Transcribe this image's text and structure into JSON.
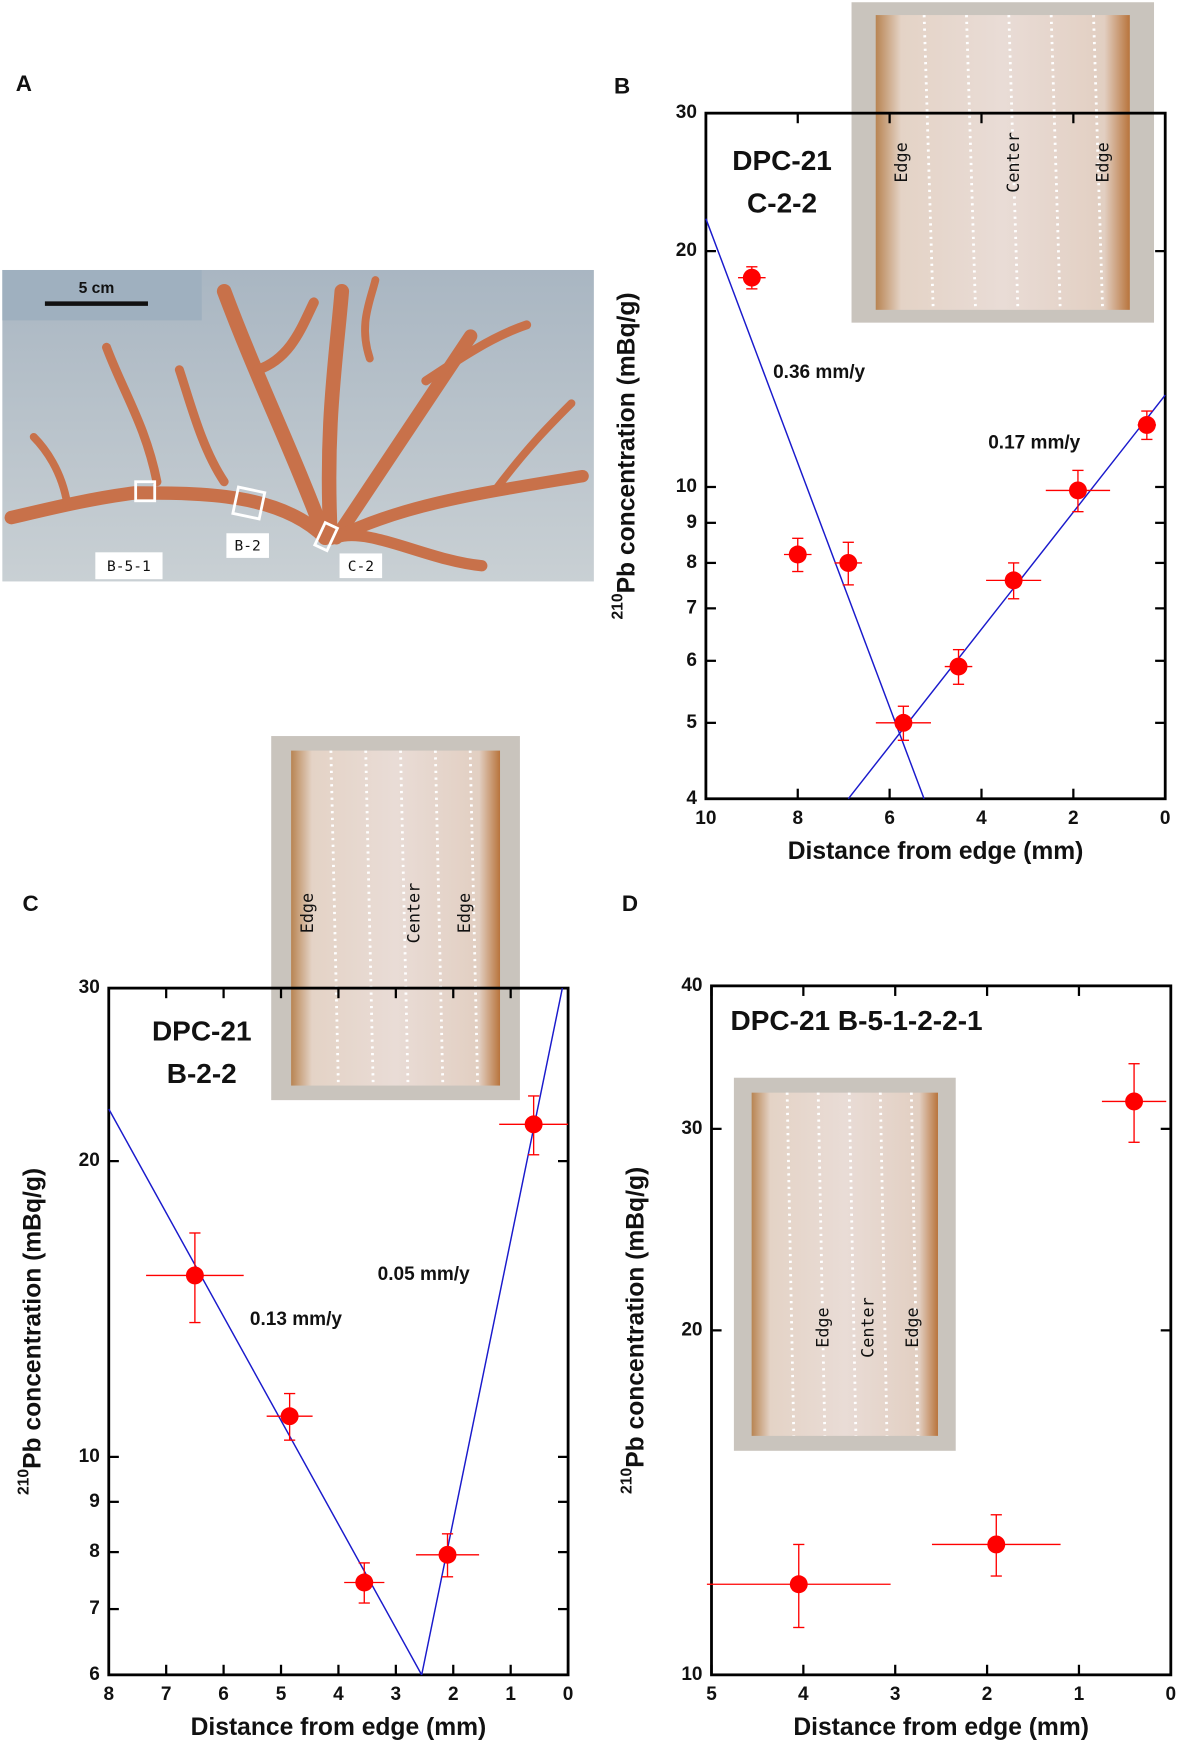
{
  "panel_a": {
    "letter": "A",
    "scale_label": "5 cm",
    "site_labels": [
      "B-5-1",
      "B-2",
      "C-2"
    ]
  },
  "chart_data": [
    {
      "panel": "B",
      "type": "scatter",
      "title_lines": [
        "DPC-21",
        "C-2-2"
      ],
      "x_label": "Distance from edge (mm)",
      "y_label_sup": "210",
      "y_label": "Pb concentration (mBq/g)",
      "inset_labels": [
        "Edge",
        "Center",
        "Edge"
      ],
      "x": [
        9.0,
        8.0,
        6.9,
        5.7,
        4.5,
        3.3,
        1.9,
        0.4
      ],
      "values": [
        18.5,
        8.2,
        8.0,
        5.0,
        5.9,
        7.6,
        9.9,
        12.0
      ],
      "x_err": [
        0.3,
        0.3,
        0.3,
        0.6,
        0.3,
        0.6,
        0.7,
        0.2
      ],
      "y_err": [
        0.6,
        0.4,
        0.5,
        0.25,
        0.3,
        0.4,
        0.6,
        0.5
      ],
      "color": "#ff0000",
      "xlim": [
        10,
        0
      ],
      "ylim": [
        4,
        30
      ],
      "log_y": true,
      "xticks": [
        10,
        8,
        6,
        4,
        2,
        0
      ],
      "yticks": [
        4,
        5,
        6,
        7,
        8,
        9,
        10,
        20,
        30
      ],
      "fits": [
        {
          "label": "0.36 mm/y",
          "color": "#1a1acc",
          "x": [
            10,
            5.25
          ],
          "y": [
            22,
            4
          ]
        },
        {
          "label": "0.17 mm/y",
          "color": "#1a1acc",
          "x": [
            6.9,
            0
          ],
          "y": [
            4,
            13.1
          ]
        }
      ]
    },
    {
      "panel": "C",
      "type": "scatter",
      "title_lines": [
        "DPC-21",
        "B-2-2"
      ],
      "x_label": "Distance from edge (mm)",
      "y_label_sup": "210",
      "y_label": "Pb concentration (mBq/g)",
      "inset_labels": [
        "Edge",
        "Center",
        "Edge"
      ],
      "x": [
        6.5,
        4.85,
        3.55,
        2.1,
        0.6
      ],
      "values": [
        15.3,
        11.0,
        7.45,
        7.95,
        21.8
      ],
      "x_err": [
        0.85,
        0.4,
        0.35,
        0.55,
        0.6
      ],
      "y_err": [
        1.6,
        0.6,
        0.35,
        0.4,
        1.5
      ],
      "color": "#ff0000",
      "xlim": [
        8,
        0
      ],
      "ylim": [
        6,
        30
      ],
      "log_y": true,
      "xticks": [
        8,
        7,
        6,
        5,
        4,
        3,
        2,
        1,
        0
      ],
      "yticks": [
        6,
        7,
        8,
        9,
        10,
        20,
        30
      ],
      "fits": [
        {
          "label": "0.13 mm/y",
          "color": "#1a1acc",
          "x": [
            8,
            2.55
          ],
          "y": [
            22.6,
            6
          ]
        },
        {
          "label": "0.05 mm/y",
          "color": "#1a1acc",
          "x": [
            2.55,
            0.1
          ],
          "y": [
            6,
            30
          ]
        }
      ]
    },
    {
      "panel": "D",
      "type": "scatter",
      "title_lines": [
        "DPC-21 B-5-1-2-2-1"
      ],
      "x_label": "Distance from edge (mm)",
      "y_label_sup": "210",
      "y_label": "Pb concentration (mBq/g)",
      "inset_labels": [
        "Edge",
        "Center",
        "Edge"
      ],
      "x": [
        4.05,
        1.9,
        0.4
      ],
      "values": [
        12.0,
        13.0,
        31.7
      ],
      "x_err": [
        1.0,
        0.7,
        0.35
      ],
      "y_err": [
        1.0,
        0.8,
        2.5
      ],
      "color": "#ff0000",
      "xlim": [
        5,
        0
      ],
      "ylim": [
        10,
        40
      ],
      "log_y": true,
      "xticks": [
        5,
        4,
        3,
        2,
        1,
        0
      ],
      "yticks": [
        10,
        20,
        30,
        40
      ],
      "fits": []
    }
  ]
}
